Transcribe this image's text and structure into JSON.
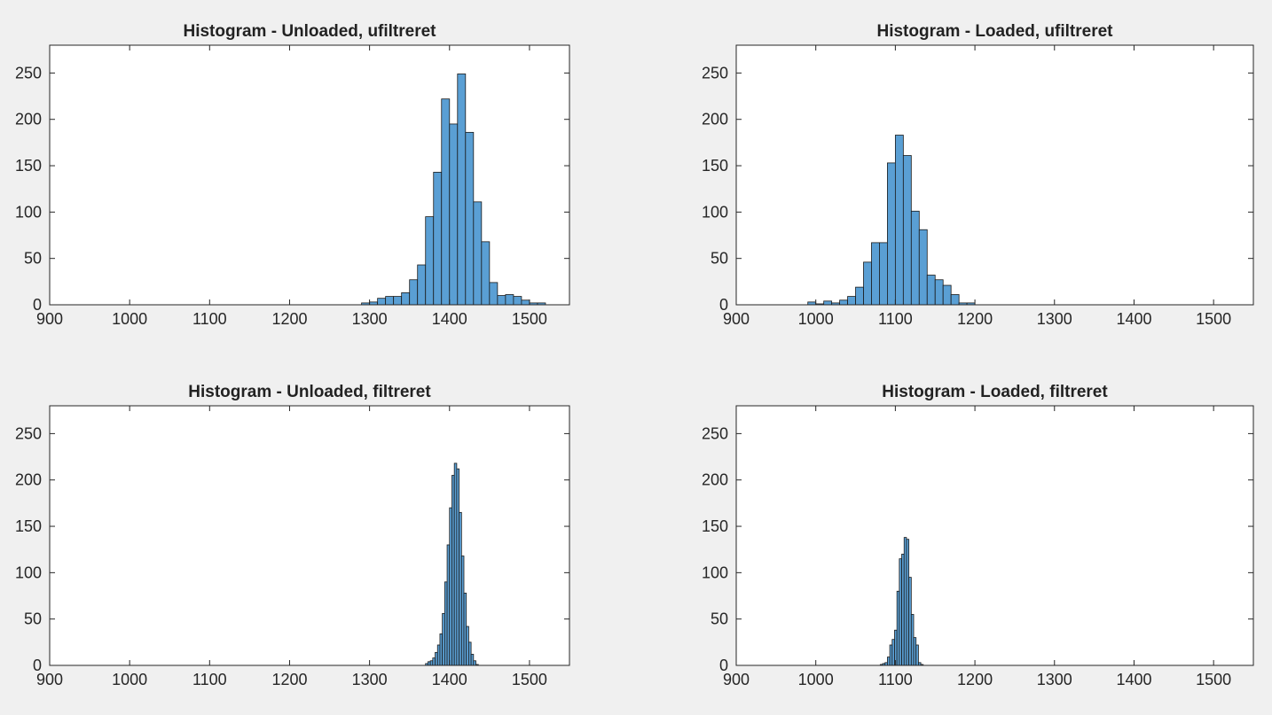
{
  "chart_data": [
    {
      "type": "bar",
      "title": "Histogram - Unloaded, ufiltreret",
      "xlabel": "",
      "ylabel": "",
      "xlim": [
        900,
        1550
      ],
      "ylim": [
        0,
        280
      ],
      "xticks": [
        900,
        1000,
        1100,
        1200,
        1300,
        1400,
        1500
      ],
      "yticks": [
        0,
        50,
        100,
        150,
        200,
        250
      ],
      "bin_width": 10,
      "bins_start": [
        1290,
        1300,
        1310,
        1320,
        1330,
        1340,
        1350,
        1360,
        1370,
        1380,
        1390,
        1400,
        1410,
        1420,
        1430,
        1440,
        1450,
        1460,
        1470,
        1480,
        1490,
        1500,
        1510
      ],
      "values": [
        2,
        3,
        7,
        9,
        9,
        13,
        27,
        43,
        95,
        143,
        222,
        195,
        249,
        186,
        111,
        68,
        24,
        10,
        11,
        9,
        5,
        2,
        2
      ],
      "bar_color": "#5a9fd4",
      "grid": false
    },
    {
      "type": "bar",
      "title": "Histogram - Loaded, ufiltreret",
      "xlabel": "",
      "ylabel": "",
      "xlim": [
        900,
        1550
      ],
      "ylim": [
        0,
        280
      ],
      "xticks": [
        900,
        1000,
        1100,
        1200,
        1300,
        1400,
        1500
      ],
      "yticks": [
        0,
        50,
        100,
        150,
        200,
        250
      ],
      "bin_width": 10,
      "bins_start": [
        990,
        1000,
        1010,
        1020,
        1030,
        1040,
        1050,
        1060,
        1070,
        1080,
        1090,
        1100,
        1110,
        1120,
        1130,
        1140,
        1150,
        1160,
        1170,
        1180,
        1190
      ],
      "values": [
        3,
        1,
        4,
        2,
        5,
        9,
        19,
        46,
        67,
        67,
        153,
        183,
        161,
        101,
        81,
        32,
        27,
        21,
        11,
        2,
        2
      ],
      "bar_color": "#5a9fd4",
      "grid": false
    },
    {
      "type": "bar",
      "title": "Histogram - Unloaded, filtreret",
      "xlabel": "",
      "ylabel": "",
      "xlim": [
        900,
        1550
      ],
      "ylim": [
        0,
        280
      ],
      "xticks": [
        900,
        1000,
        1100,
        1200,
        1300,
        1400,
        1500
      ],
      "yticks": [
        0,
        50,
        100,
        150,
        200,
        250
      ],
      "bin_width": 3,
      "bins_start": [
        1370,
        1373,
        1376,
        1379,
        1382,
        1385,
        1388,
        1391,
        1394,
        1397,
        1400,
        1403,
        1406,
        1409,
        1412,
        1415,
        1418,
        1421,
        1424,
        1427,
        1430,
        1433
      ],
      "values": [
        2,
        4,
        5,
        8,
        14,
        22,
        34,
        56,
        90,
        130,
        170,
        205,
        218,
        212,
        165,
        118,
        78,
        42,
        25,
        12,
        5,
        1
      ],
      "bar_color": "#5a9fd4",
      "grid": false
    },
    {
      "type": "bar",
      "title": "Histogram - Loaded, filtreret",
      "xlabel": "",
      "ylabel": "",
      "xlim": [
        900,
        1550
      ],
      "ylim": [
        0,
        280
      ],
      "xticks": [
        900,
        1000,
        1100,
        1200,
        1300,
        1400,
        1500
      ],
      "yticks": [
        0,
        50,
        100,
        150,
        200,
        250
      ],
      "bin_width": 3,
      "bins_start": [
        1081,
        1084,
        1087,
        1090,
        1093,
        1096,
        1099,
        1102,
        1105,
        1108,
        1111,
        1114,
        1117,
        1120,
        1123,
        1126,
        1129,
        1132
      ],
      "values": [
        1,
        2,
        3,
        9,
        22,
        28,
        38,
        80,
        115,
        120,
        138,
        136,
        95,
        55,
        30,
        22,
        3,
        1
      ],
      "bar_color": "#5a9fd4",
      "grid": false
    }
  ]
}
